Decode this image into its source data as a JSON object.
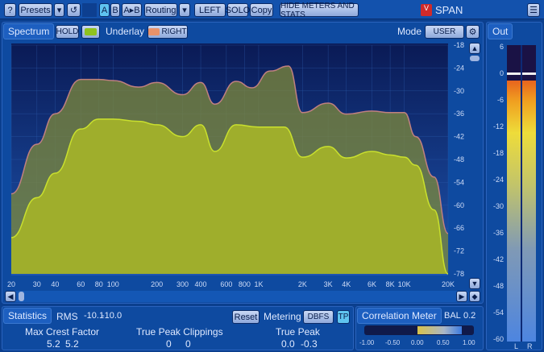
{
  "toolbar": {
    "help": "?",
    "presets": "Presets",
    "undo_icon": "undo-icon",
    "a": "A",
    "b": "B",
    "ab": "A▸B",
    "routing": "Routing",
    "left": "LEFT",
    "solo": "SOLO",
    "copy": "Copy",
    "hide": "HIDE METERS AND STATS",
    "title": "SPAN",
    "menu_icon": "hamburger-icon"
  },
  "spectrum": {
    "tab": "Spectrum",
    "hold": "HOLD",
    "underlay": "Underlay",
    "right": "RIGHT",
    "mode_label": "Mode",
    "mode": "USER",
    "main_color": "#b5cc2e",
    "underlay_color": "#e8926a"
  },
  "out": {
    "tab": "Out",
    "ticks": [
      "6",
      "0",
      "-6",
      "-12",
      "-18",
      "-24",
      "-30",
      "-36",
      "-42",
      "-48",
      "-54",
      "-60"
    ],
    "l": "L",
    "r": "R"
  },
  "statistics": {
    "tab": "Statistics",
    "rms_label": "RMS",
    "rms_l": "-10.1",
    "rms_r": "-10.0",
    "reset": "Reset",
    "metering_label": "Metering",
    "metering": "DBFS",
    "tp": "TP",
    "crest_label": "Max Crest Factor",
    "crest_l": "5.2",
    "crest_r": "5.2",
    "clip_label": "True Peak Clippings",
    "clip_l": "0",
    "clip_r": "0",
    "tp_label": "True Peak",
    "tp_l": "0.0",
    "tp_r": "-0.3"
  },
  "correlation": {
    "tab": "Correlation Meter",
    "bal_label": "BAL",
    "bal": "0.2",
    "ticks": [
      "-1.00",
      "-0.50",
      "0.00",
      "0.50",
      "1.00"
    ]
  },
  "chart_data": {
    "type": "area",
    "xscale": "log",
    "xlim": [
      20,
      20000
    ],
    "ylim": [
      -78,
      -18
    ],
    "x_ticks": [
      "20",
      "30",
      "40",
      "60",
      "80",
      "100",
      "200",
      "300",
      "400",
      "600",
      "800",
      "1K",
      "2K",
      "3K",
      "4K",
      "6K",
      "8K",
      "10K",
      "20K"
    ],
    "x_tick_values": [
      20,
      30,
      40,
      60,
      80,
      100,
      200,
      300,
      400,
      600,
      800,
      1000,
      2000,
      3000,
      4000,
      6000,
      8000,
      10000,
      20000
    ],
    "y_ticks": [
      "-18",
      "-24",
      "-30",
      "-36",
      "-42",
      "-48",
      "-54",
      "-60",
      "-66",
      "-72",
      "-78"
    ],
    "grid": true,
    "series": [
      {
        "freq": [
          20,
          30,
          40,
          60,
          80,
          100,
          150,
          200,
          300,
          400,
          500,
          700,
          900,
          1200,
          1600,
          2000,
          3000,
          4000,
          6000,
          8000,
          10000,
          12000,
          16000,
          20000
        ],
        "db": [
          -57,
          -44,
          -36,
          -27,
          -27,
          -27.3,
          -29,
          -27.8,
          -31,
          -27.8,
          -33.5,
          -27.5,
          -29.2,
          -24.8,
          -23.5,
          -35.7,
          -33.2,
          -36.1,
          -35.3,
          -35.7,
          -35.7,
          -42,
          -52.6,
          -67.4
        ]
      },
      {
        "freq": [
          20,
          30,
          40,
          60,
          80,
          100,
          150,
          200,
          300,
          400,
          500,
          700,
          1000,
          1500,
          2000,
          3000,
          4000,
          6000,
          8000,
          10000,
          12000,
          16000,
          20000
        ],
        "db": [
          -68.5,
          -58,
          -51.6,
          -40,
          -37.4,
          -37.4,
          -38,
          -38.9,
          -42,
          -38.9,
          -45.9,
          -38.9,
          -39.5,
          -39.5,
          -47.4,
          -44.6,
          -47.6,
          -45.9,
          -46.8,
          -47.4,
          -49.5,
          -61.2,
          -78
        ]
      }
    ]
  }
}
